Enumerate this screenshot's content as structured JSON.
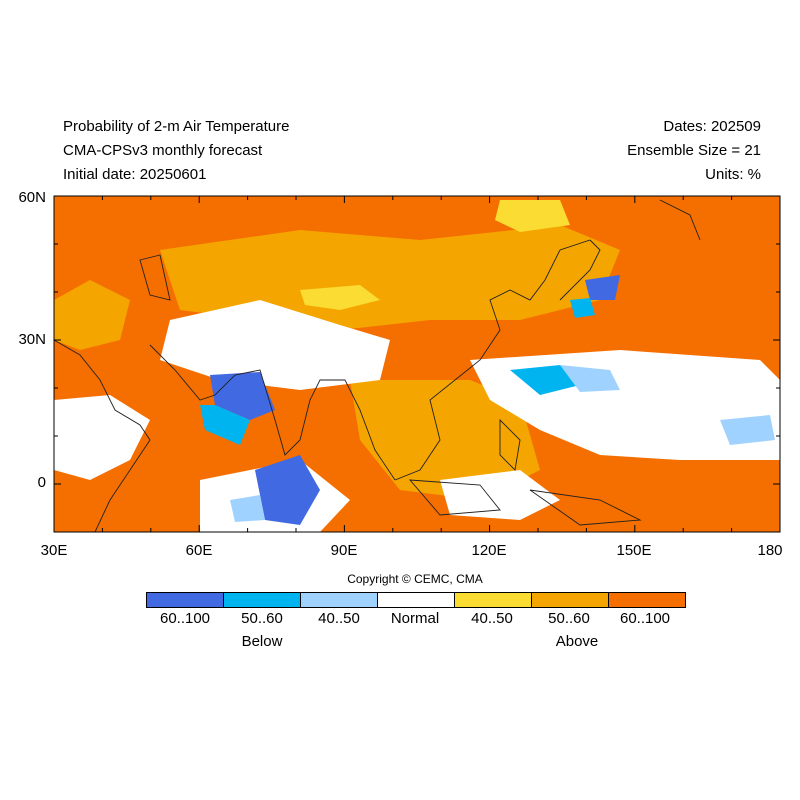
{
  "header": {
    "title": "Probability of 2-m Air Temperature",
    "model": "CMA-CPSv3 monthly forecast",
    "initial": "Initial date: 20250601",
    "dates": "Dates: 202509",
    "ensemble": "Ensemble Size = 21",
    "units": "Units: %"
  },
  "axes": {
    "lat_labels": [
      "60N",
      "30N",
      "0"
    ],
    "lon_labels": [
      "30E",
      "60E",
      "90E",
      "120E",
      "150E",
      "180"
    ]
  },
  "copyright": "Copyright © CEMC, CMA",
  "legend": {
    "items": [
      {
        "label": "60..100",
        "color": "#4169e1"
      },
      {
        "label": "50..60",
        "color": "#00b4f0"
      },
      {
        "label": "40..50",
        "color": "#a0d2ff"
      },
      {
        "label": "Normal",
        "color": "#ffffff"
      },
      {
        "label": "40..50",
        "color": "#fadc32"
      },
      {
        "label": "50..60",
        "color": "#f5a500"
      },
      {
        "label": "60..100",
        "color": "#f56e00"
      }
    ],
    "below_label": "Below",
    "above_label": "Above"
  },
  "map_extent": {
    "lon": [
      30,
      180
    ],
    "lat": [
      -10,
      60
    ]
  }
}
